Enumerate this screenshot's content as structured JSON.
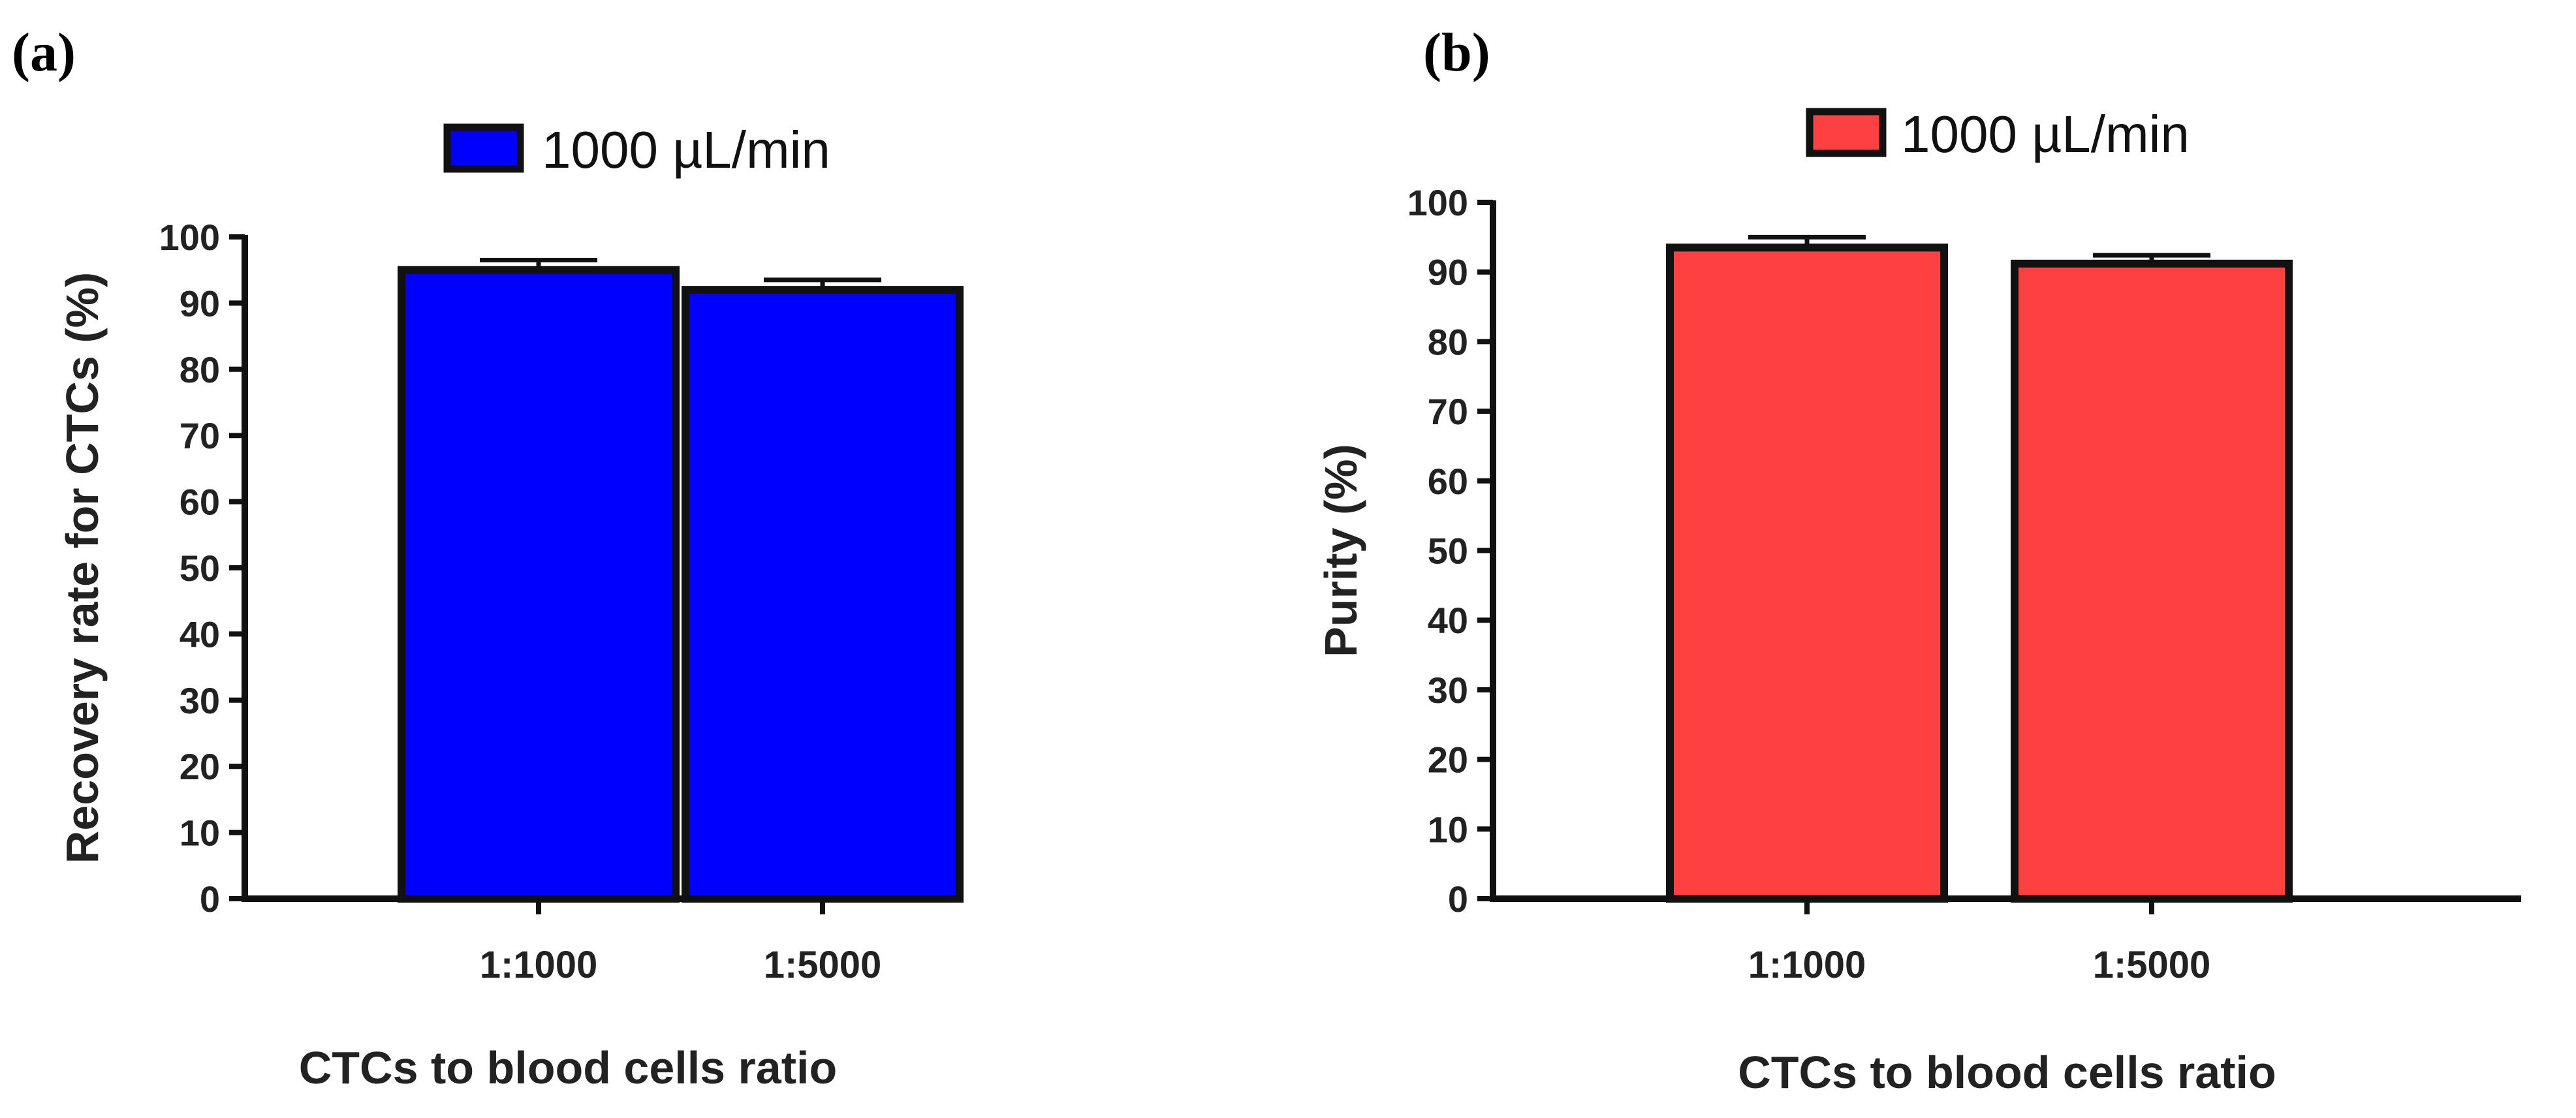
{
  "chart_data": [
    {
      "type": "bar",
      "panel_label": "(a)",
      "categories": [
        "1:1000",
        "1:5000"
      ],
      "series": [
        {
          "name": "1000 µL/min",
          "values": [
            95,
            92
          ],
          "errors": [
            1.5,
            1.5
          ]
        }
      ],
      "xlabel": "CTCs to blood cells ratio",
      "ylabel": "Recovery rate for CTCs (%)",
      "ylim": [
        0,
        100
      ],
      "yticks": [
        "0",
        "10",
        "20",
        "30",
        "40",
        "50",
        "60",
        "70",
        "80",
        "90",
        "100"
      ],
      "legend_position": "top",
      "color": "#0000ff"
    },
    {
      "type": "bar",
      "panel_label": "(b)",
      "categories": [
        "1:1000",
        "1:5000"
      ],
      "series": [
        {
          "name": "1000 µL/min",
          "values": [
            93.5,
            91.2
          ],
          "errors": [
            1.5,
            1.2
          ]
        }
      ],
      "xlabel": "CTCs to blood cells ratio",
      "ylabel": "Purity (%)",
      "ylim": [
        0,
        100
      ],
      "yticks": [
        "0",
        "10",
        "20",
        "30",
        "40",
        "50",
        "60",
        "70",
        "80",
        "90",
        "100"
      ],
      "legend_position": "top",
      "color": "#ff4040"
    }
  ]
}
